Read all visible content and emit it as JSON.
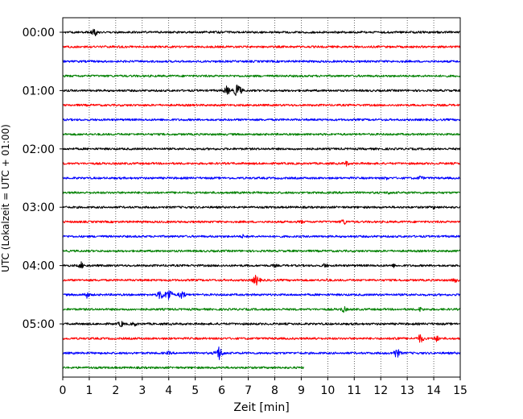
{
  "chart_data": {
    "type": "line",
    "title": "",
    "xlabel": "Zeit  [min]",
    "ylabel": "UTC (Lokalzeit = UTC + 01:00)",
    "xlim": [
      0,
      15
    ],
    "x_ticks": [
      "0",
      "1",
      "2",
      "3",
      "4",
      "5",
      "6",
      "7",
      "8",
      "9",
      "10",
      "11",
      "12",
      "13",
      "14",
      "15"
    ],
    "y_tick_labels": [
      "00:00",
      "01:00",
      "02:00",
      "03:00",
      "04:00",
      "05:00"
    ],
    "y_tick_rows": [
      0,
      4,
      8,
      12,
      16,
      20
    ],
    "grid": "vertical dotted",
    "trace_minutes": 15,
    "row_colors": [
      "#000000",
      "#ff0000",
      "#0000ff",
      "#008000"
    ],
    "series": [
      {
        "row": 0,
        "start_utc": "00:00",
        "end_min": 15,
        "events": [
          {
            "t": 1.2,
            "amp": 6
          }
        ]
      },
      {
        "row": 1,
        "start_utc": "00:15",
        "end_min": 15,
        "events": []
      },
      {
        "row": 2,
        "start_utc": "00:30",
        "end_min": 15,
        "events": []
      },
      {
        "row": 3,
        "start_utc": "00:45",
        "end_min": 15,
        "events": []
      },
      {
        "row": 4,
        "start_utc": "01:00",
        "end_min": 15,
        "events": [
          {
            "t": 6.2,
            "amp": 7
          },
          {
            "t": 6.6,
            "amp": 11
          }
        ]
      },
      {
        "row": 5,
        "start_utc": "01:15",
        "end_min": 15,
        "events": []
      },
      {
        "row": 6,
        "start_utc": "01:30",
        "end_min": 15,
        "events": []
      },
      {
        "row": 7,
        "start_utc": "01:45",
        "end_min": 15,
        "events": []
      },
      {
        "row": 8,
        "start_utc": "02:00",
        "end_min": 15,
        "events": []
      },
      {
        "row": 9,
        "start_utc": "02:15",
        "end_min": 15,
        "events": [
          {
            "t": 10.7,
            "amp": 4
          }
        ]
      },
      {
        "row": 10,
        "start_utc": "02:30",
        "end_min": 15,
        "events": [
          {
            "t": 12.2,
            "amp": 3
          },
          {
            "t": 13.5,
            "amp": 4
          }
        ]
      },
      {
        "row": 11,
        "start_utc": "02:45",
        "end_min": 15,
        "events": [
          {
            "t": 12.3,
            "amp": 3
          }
        ]
      },
      {
        "row": 12,
        "start_utc": "03:00",
        "end_min": 15,
        "events": [
          {
            "t": 14.0,
            "amp": 3
          }
        ]
      },
      {
        "row": 13,
        "start_utc": "03:15",
        "end_min": 15,
        "events": [
          {
            "t": 10.6,
            "amp": 5
          },
          {
            "t": 9.0,
            "amp": 3
          }
        ]
      },
      {
        "row": 14,
        "start_utc": "03:30",
        "end_min": 15,
        "events": [
          {
            "t": 6.8,
            "amp": 3
          }
        ]
      },
      {
        "row": 15,
        "start_utc": "03:45",
        "end_min": 15,
        "events": []
      },
      {
        "row": 16,
        "start_utc": "04:00",
        "end_min": 15,
        "events": [
          {
            "t": 0.7,
            "amp": 5
          },
          {
            "t": 9.9,
            "amp": 4
          },
          {
            "t": 8.0,
            "amp": 3
          },
          {
            "t": 12.5,
            "amp": 3
          }
        ]
      },
      {
        "row": 17,
        "start_utc": "04:15",
        "end_min": 15,
        "events": [
          {
            "t": 7.3,
            "amp": 8
          },
          {
            "t": 14.8,
            "amp": 4
          },
          {
            "t": 10.0,
            "amp": 3
          }
        ]
      },
      {
        "row": 18,
        "start_utc": "04:30",
        "end_min": 15,
        "events": [
          {
            "t": 0.9,
            "amp": 5
          },
          {
            "t": 3.7,
            "amp": 8
          },
          {
            "t": 4.0,
            "amp": 10
          },
          {
            "t": 4.5,
            "amp": 7
          }
        ]
      },
      {
        "row": 19,
        "start_utc": "04:45",
        "end_min": 15,
        "events": [
          {
            "t": 10.6,
            "amp": 5
          },
          {
            "t": 13.5,
            "amp": 4
          }
        ]
      },
      {
        "row": 20,
        "start_utc": "05:00",
        "end_min": 15,
        "events": [
          {
            "t": 2.2,
            "amp": 5
          },
          {
            "t": 2.7,
            "amp": 4
          }
        ]
      },
      {
        "row": 21,
        "start_utc": "05:15",
        "end_min": 15,
        "events": [
          {
            "t": 13.5,
            "amp": 7
          },
          {
            "t": 14.1,
            "amp": 5
          },
          {
            "t": 12.6,
            "amp": 4
          },
          {
            "t": 9.5,
            "amp": 3
          }
        ]
      },
      {
        "row": 22,
        "start_utc": "05:30",
        "end_min": 15,
        "events": [
          {
            "t": 5.9,
            "amp": 10
          },
          {
            "t": 12.6,
            "amp": 8
          },
          {
            "t": 4.0,
            "amp": 3
          }
        ]
      },
      {
        "row": 23,
        "start_utc": "05:45",
        "end_min": 9.1,
        "events": []
      }
    ]
  }
}
